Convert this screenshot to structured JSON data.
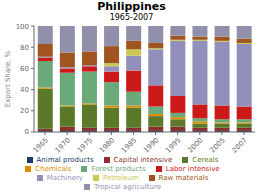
{
  "chart_data": {
    "type": "bar",
    "title": "Philippines",
    "subtitle": "1965-2007",
    "y_label": "Export Share, %",
    "categories": [
      "1965",
      "1970",
      "1975",
      "1980",
      "1985",
      "1990",
      "1995",
      "2000",
      "2005",
      "2007"
    ],
    "series": [
      {
        "name": "Animal products",
        "color": "#1a3a6b",
        "values": [
          1,
          1,
          1,
          1,
          1,
          1,
          1,
          1,
          1,
          1
        ]
      },
      {
        "name": "Capital intensive",
        "color": "#8b3030",
        "values": [
          2,
          4,
          3,
          3,
          3,
          4,
          4,
          3,
          3,
          3
        ]
      },
      {
        "name": "Cereals",
        "color": "#5a7a2a",
        "values": [
          38,
          19,
          22,
          19,
          19,
          10,
          7,
          4,
          4,
          4
        ]
      },
      {
        "name": "Chemicals",
        "color": "#e08c00",
        "values": [
          1,
          1,
          1,
          2,
          2,
          2,
          2,
          2,
          1,
          1
        ]
      },
      {
        "name": "Forest products",
        "color": "#6aaa7a",
        "values": [
          25,
          31,
          30,
          22,
          13,
          7,
          4,
          3,
          3,
          3
        ]
      },
      {
        "name": "Labor intensive",
        "color": "#cc1a1a",
        "values": [
          3,
          4,
          5,
          10,
          20,
          20,
          16,
          13,
          13,
          12
        ]
      },
      {
        "name": "Machinery",
        "color": "#9090bb",
        "values": [
          1,
          1,
          1,
          5,
          14,
          34,
          52,
          60,
          60,
          59
        ]
      },
      {
        "name": "Petroleum",
        "color": "#c8c855",
        "values": [
          0,
          0,
          0,
          3,
          6,
          1,
          1,
          1,
          1,
          1
        ]
      },
      {
        "name": "Raw materials",
        "color": "#a05520",
        "values": [
          12,
          14,
          13,
          16,
          8,
          5,
          4,
          3,
          4,
          4
        ]
      },
      {
        "name": "Tropical agriculture",
        "color": "#9090aa",
        "values": [
          17,
          25,
          24,
          19,
          14,
          16,
          9,
          10,
          10,
          12
        ]
      }
    ],
    "ylim": [
      0,
      100
    ],
    "yticks": [
      0,
      20,
      40,
      60,
      80,
      100
    ],
    "stacked": true,
    "grid": false,
    "legend": "bottom"
  }
}
